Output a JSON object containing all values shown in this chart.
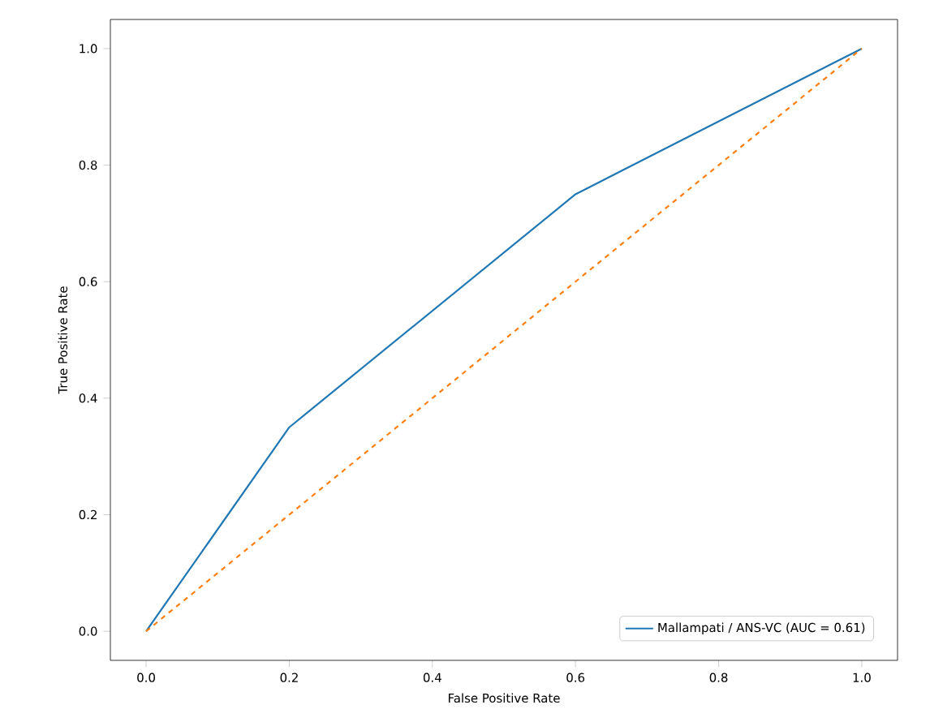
{
  "chart_data": {
    "type": "line",
    "xlabel": "False Positive Rate",
    "ylabel": "True Positive Rate",
    "series": [
      {
        "name": "Mallampati / ANS-VC (AUC = 0.61)",
        "color": "#1f77b4",
        "x": [
          0,
          0.2,
          0.6,
          1
        ],
        "values": [
          0,
          0.35,
          0.75,
          1
        ]
      },
      {
        "color": "#ff7f0e",
        "line_style": "dashed",
        "x": [
          0,
          1
        ],
        "values": [
          0,
          1
        ]
      }
    ],
    "xlim": [
      -0.05,
      1.05
    ],
    "ylim": [
      -0.05,
      1.05
    ],
    "xticks": [
      {
        "value": 0,
        "label": "0.0"
      },
      0.2,
      0.4,
      0.6,
      0.8,
      {
        "value": 1,
        "label": "1.0"
      }
    ],
    "yticks": [
      {
        "value": 0,
        "label": "0.0"
      },
      0.2,
      0.4,
      0.6,
      0.8,
      {
        "value": 1,
        "label": "1.0"
      }
    ],
    "legend": "bottom right",
    "marker": "none"
  }
}
